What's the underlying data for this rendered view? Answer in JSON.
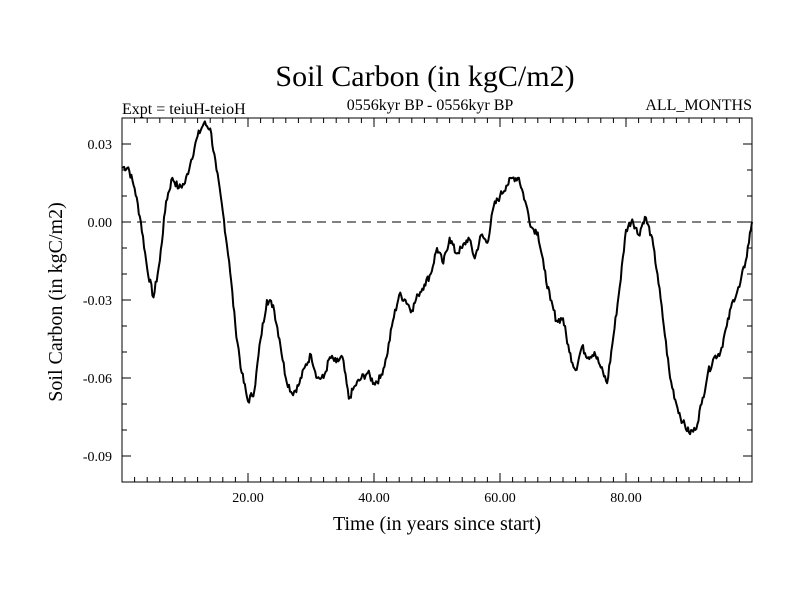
{
  "chart_data": {
    "type": "line",
    "title": "Soil Carbon (in kgC/m2)",
    "subtitle": "0556kyr BP - 0556kyr BP",
    "left_label": "Expt = teiuH-teioH",
    "right_label": "ALL_MONTHS",
    "xlabel": "Time (in years since start)",
    "ylabel": "Soil Carbon (in kgC/m2)",
    "xlim": [
      0,
      100
    ],
    "ylim": [
      -0.1,
      0.04
    ],
    "x_ticks": [
      20,
      40,
      60,
      80
    ],
    "x_tick_labels": [
      "20.00",
      "40.00",
      "60.00",
      "80.00"
    ],
    "y_ticks": [
      0.03,
      0,
      -0.03,
      -0.06,
      -0.09
    ],
    "y_tick_labels": [
      "0.03",
      "0.00",
      "-0.03",
      "-0.06",
      "-0.09"
    ],
    "zero_line": true,
    "grid": false,
    "series": [
      {
        "x": [
          0,
          1,
          2,
          3,
          4,
          5,
          6,
          7,
          8,
          9,
          10,
          11,
          12,
          13,
          14,
          15,
          16,
          17,
          18,
          19,
          20,
          21,
          22,
          23,
          24,
          25,
          26,
          27,
          28,
          29,
          30,
          31,
          32,
          33,
          34,
          35,
          36,
          37,
          38,
          39,
          40,
          41,
          42,
          43,
          44,
          45,
          46,
          47,
          48,
          49,
          50,
          51,
          52,
          53,
          54,
          55,
          56,
          57,
          58,
          59,
          60,
          61,
          62,
          63,
          64,
          65,
          66,
          67,
          68,
          69,
          70,
          71,
          72,
          73,
          74,
          75,
          76,
          77,
          78,
          79,
          80,
          81,
          82,
          83,
          84,
          85,
          86,
          87,
          88,
          89,
          90,
          91,
          92,
          93,
          94,
          95,
          96,
          97,
          98,
          99,
          100
        ],
        "y": [
          0.021,
          0.021,
          0.013,
          0.0,
          -0.018,
          -0.029,
          -0.015,
          0.008,
          0.017,
          0.013,
          0.015,
          0.024,
          0.033,
          0.038,
          0.036,
          0.02,
          0.004,
          -0.015,
          -0.04,
          -0.058,
          -0.069,
          -0.065,
          -0.045,
          -0.03,
          -0.032,
          -0.045,
          -0.06,
          -0.066,
          -0.063,
          -0.056,
          -0.051,
          -0.06,
          -0.06,
          -0.052,
          -0.054,
          -0.052,
          -0.068,
          -0.063,
          -0.06,
          -0.058,
          -0.062,
          -0.06,
          -0.052,
          -0.038,
          -0.028,
          -0.03,
          -0.034,
          -0.028,
          -0.024,
          -0.02,
          -0.01,
          -0.016,
          -0.006,
          -0.012,
          -0.01,
          -0.006,
          -0.014,
          -0.005,
          -0.008,
          0.006,
          0.01,
          0.014,
          0.017,
          0.017,
          0.008,
          -0.002,
          -0.004,
          -0.018,
          -0.03,
          -0.038,
          -0.037,
          -0.05,
          -0.057,
          -0.048,
          -0.052,
          -0.05,
          -0.056,
          -0.062,
          -0.044,
          -0.025,
          -0.003,
          0.001,
          -0.005,
          0.002,
          -0.005,
          -0.02,
          -0.04,
          -0.06,
          -0.07,
          -0.077,
          -0.081,
          -0.08,
          -0.07,
          -0.058,
          -0.052,
          -0.05,
          -0.04,
          -0.03,
          -0.025,
          -0.015,
          0.0
        ]
      }
    ]
  }
}
